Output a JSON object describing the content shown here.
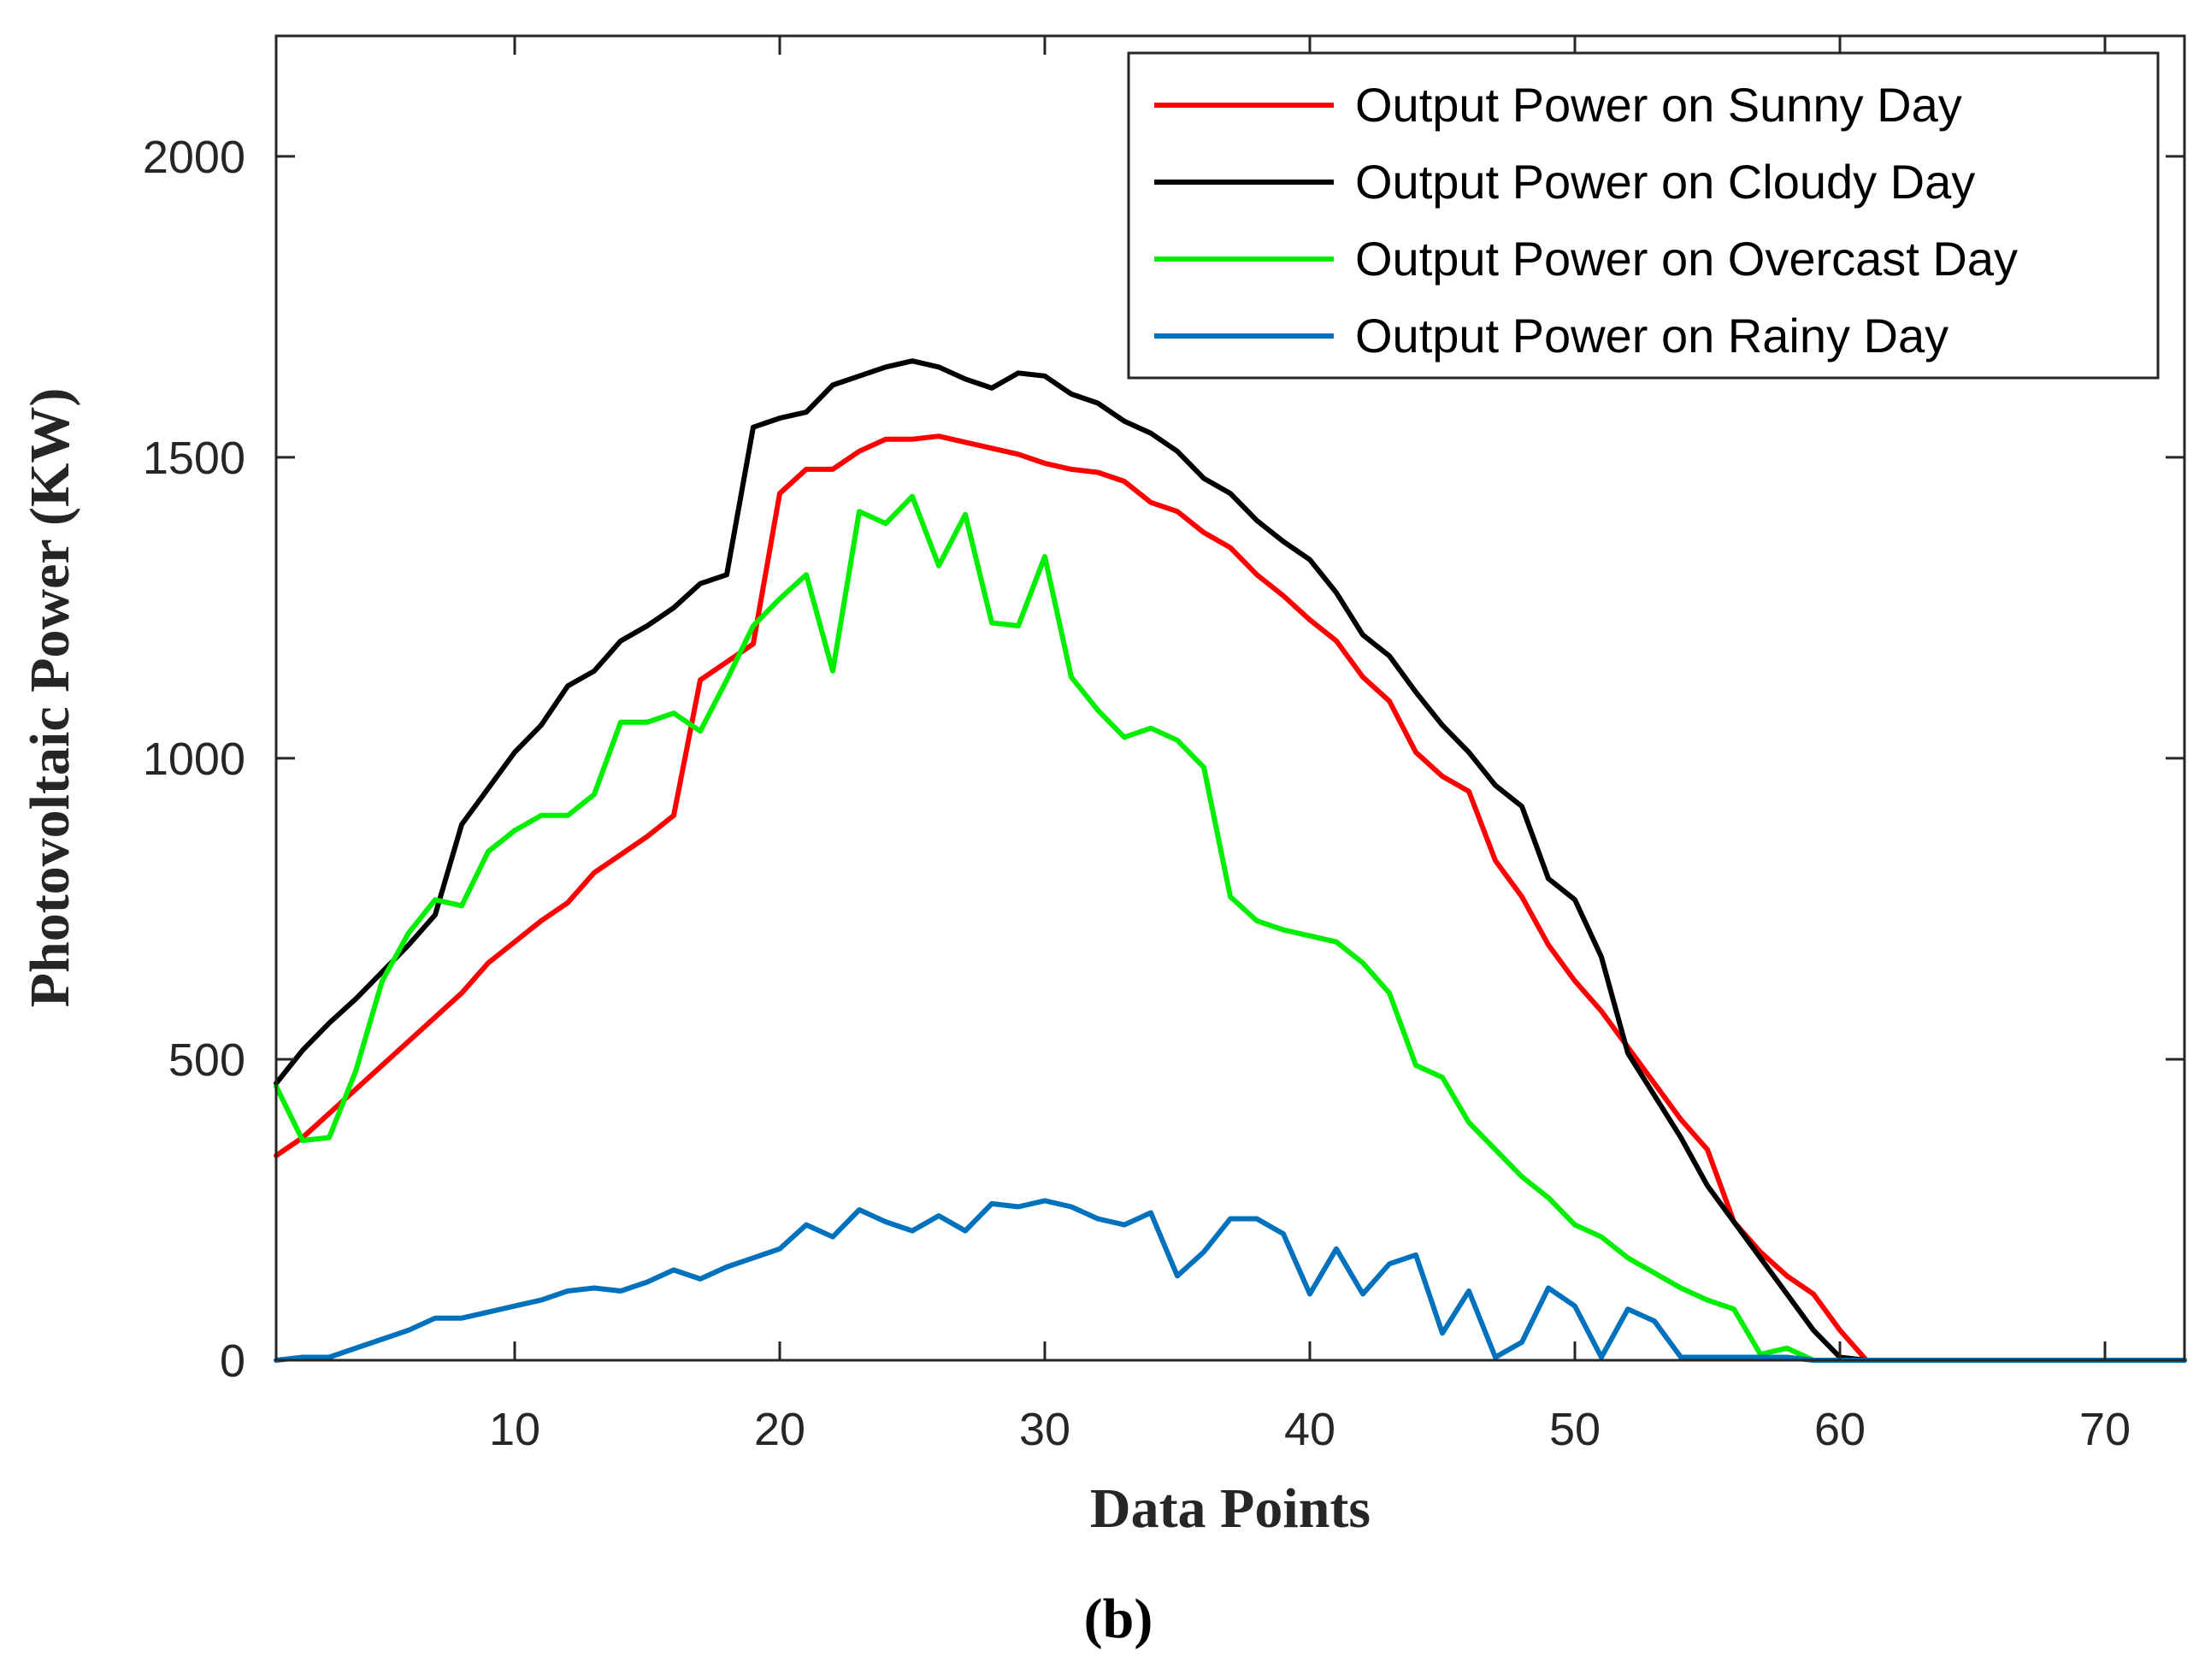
{
  "chart_data": {
    "type": "line",
    "title": "",
    "xlabel": "Data Points",
    "ylabel": "Photovoltaic Power (KW)",
    "panel_label": "(b)",
    "xlim": [
      1,
      73
    ],
    "ylim": [
      0,
      2200
    ],
    "xticks": [
      10,
      20,
      30,
      40,
      50,
      60,
      70
    ],
    "yticks": [
      0,
      500,
      1000,
      1500,
      2000
    ],
    "grid": false,
    "legend_position": "top-right",
    "x": [
      1,
      2,
      3,
      4,
      5,
      6,
      7,
      8,
      9,
      10,
      11,
      12,
      13,
      14,
      15,
      16,
      17,
      18,
      19,
      20,
      21,
      22,
      23,
      24,
      25,
      26,
      27,
      28,
      29,
      30,
      31,
      32,
      33,
      34,
      35,
      36,
      37,
      38,
      39,
      40,
      41,
      42,
      43,
      44,
      45,
      46,
      47,
      48,
      49,
      50,
      51,
      52,
      53,
      54,
      55,
      56,
      57,
      58,
      59,
      60,
      61,
      62,
      63,
      64,
      65,
      66,
      67,
      68,
      69,
      70,
      71,
      72,
      73
    ],
    "series": [
      {
        "name": "Output Power on Sunny Day",
        "color": "#ff0000",
        "values": [
          340,
          370,
          410,
          450,
          490,
          530,
          570,
          610,
          660,
          695,
          730,
          760,
          810,
          840,
          870,
          905,
          1130,
          1160,
          1190,
          1440,
          1480,
          1480,
          1510,
          1530,
          1530,
          1535,
          1525,
          1515,
          1505,
          1490,
          1480,
          1475,
          1460,
          1425,
          1410,
          1375,
          1350,
          1305,
          1270,
          1230,
          1195,
          1135,
          1095,
          1010,
          970,
          945,
          830,
          770,
          690,
          630,
          580,
          520,
          460,
          400,
          350,
          230,
          180,
          140,
          110,
          50,
          0,
          0,
          0,
          0,
          0,
          0,
          0,
          0,
          0,
          0,
          0,
          0,
          0
        ]
      },
      {
        "name": "Output Power on Cloudy Day",
        "color": "#000000",
        "values": [
          460,
          515,
          560,
          600,
          645,
          690,
          740,
          890,
          950,
          1010,
          1055,
          1120,
          1145,
          1195,
          1220,
          1250,
          1290,
          1305,
          1550,
          1565,
          1575,
          1620,
          1635,
          1650,
          1660,
          1650,
          1630,
          1615,
          1640,
          1635,
          1605,
          1590,
          1560,
          1540,
          1510,
          1465,
          1440,
          1395,
          1360,
          1330,
          1275,
          1205,
          1170,
          1110,
          1055,
          1010,
          955,
          920,
          800,
          765,
          670,
          510,
          440,
          370,
          290,
          230,
          170,
          110,
          50,
          5,
          0,
          0,
          0,
          0,
          0,
          0,
          0,
          0,
          0,
          0,
          0,
          0,
          0
        ]
      },
      {
        "name": "Output Power on Overcast Day",
        "color": "#00ee00",
        "values": [
          455,
          365,
          370,
          480,
          630,
          710,
          765,
          755,
          845,
          880,
          905,
          905,
          940,
          1060,
          1060,
          1075,
          1045,
          1130,
          1220,
          1265,
          1305,
          1145,
          1410,
          1390,
          1435,
          1320,
          1405,
          1225,
          1220,
          1335,
          1135,
          1080,
          1035,
          1050,
          1030,
          985,
          770,
          730,
          715,
          705,
          695,
          660,
          610,
          490,
          470,
          395,
          350,
          305,
          270,
          225,
          205,
          170,
          145,
          120,
          100,
          85,
          10,
          20,
          0,
          0,
          0,
          0,
          0,
          0,
          0,
          0,
          0,
          0,
          0,
          0,
          0,
          0,
          0
        ]
      },
      {
        "name": "Output Power on Rainy Day",
        "color": "#0072bd",
        "values": [
          0,
          5,
          5,
          20,
          35,
          50,
          70,
          70,
          80,
          90,
          100,
          115,
          120,
          115,
          130,
          150,
          135,
          155,
          170,
          185,
          225,
          205,
          250,
          230,
          215,
          240,
          215,
          260,
          255,
          265,
          255,
          235,
          225,
          245,
          140,
          180,
          235,
          235,
          210,
          110,
          185,
          110,
          160,
          175,
          45,
          115,
          5,
          30,
          120,
          90,
          5,
          85,
          65,
          5,
          5,
          5,
          5,
          5,
          0,
          0,
          0,
          0,
          0,
          0,
          0,
          0,
          0,
          0,
          0,
          0,
          0,
          0,
          0
        ]
      }
    ]
  }
}
